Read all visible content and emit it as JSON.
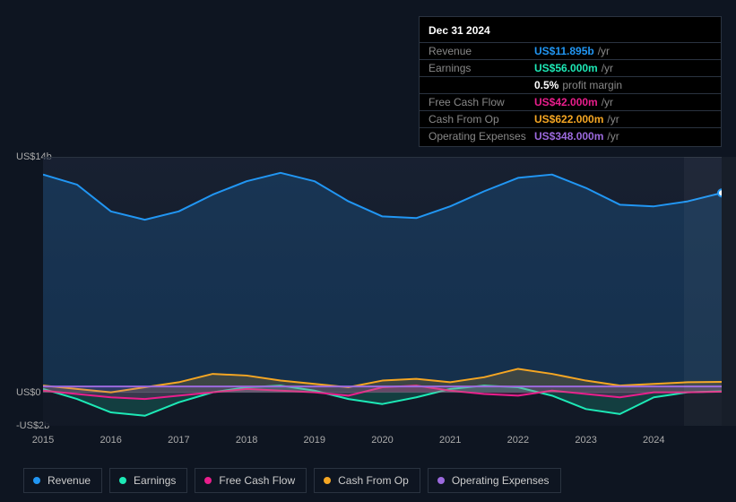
{
  "tooltip": {
    "date": "Dec 31 2024",
    "rows": [
      {
        "label": "Revenue",
        "value": "US$11.895b",
        "unit": "/yr",
        "color": "#2196f3"
      },
      {
        "label": "Earnings",
        "value": "US$56.000m",
        "unit": "/yr",
        "color": "#1de9b6",
        "secondary_value": "0.5%",
        "secondary_label": "profit margin"
      },
      {
        "label": "Free Cash Flow",
        "value": "US$42.000m",
        "unit": "/yr",
        "color": "#e91e8c"
      },
      {
        "label": "Cash From Op",
        "value": "US$622.000m",
        "unit": "/yr",
        "color": "#f5a623"
      },
      {
        "label": "Operating Expenses",
        "value": "US$348.000m",
        "unit": "/yr",
        "color": "#9c6ade"
      }
    ]
  },
  "chart": {
    "type": "area",
    "x_start": 2015,
    "x_end": 2025,
    "y_min": -2,
    "y_max": 14,
    "y_ticks": [
      {
        "v": 14,
        "label": "US$14b"
      },
      {
        "v": 0,
        "label": "US$0"
      },
      {
        "v": -2,
        "label": "-US$2b"
      }
    ],
    "x_ticks": [
      2015,
      2016,
      2017,
      2018,
      2019,
      2020,
      2021,
      2022,
      2023,
      2024
    ],
    "cursor_x": 2024.95,
    "grid_color": "#2a3340",
    "background": "#0e1521",
    "line_width": 2,
    "area_opacity": 0.18,
    "series": [
      {
        "name": "Revenue",
        "color": "#2196f3",
        "points": [
          [
            2015,
            13.0
          ],
          [
            2015.5,
            12.4
          ],
          [
            2016,
            10.8
          ],
          [
            2016.5,
            10.3
          ],
          [
            2017,
            10.8
          ],
          [
            2017.5,
            11.8
          ],
          [
            2018,
            12.6
          ],
          [
            2018.5,
            13.1
          ],
          [
            2019,
            12.6
          ],
          [
            2019.5,
            11.4
          ],
          [
            2020,
            10.5
          ],
          [
            2020.5,
            10.4
          ],
          [
            2021,
            11.1
          ],
          [
            2021.5,
            12.0
          ],
          [
            2022,
            12.8
          ],
          [
            2022.5,
            13.0
          ],
          [
            2023,
            12.2
          ],
          [
            2023.5,
            11.2
          ],
          [
            2024,
            11.1
          ],
          [
            2024.5,
            11.4
          ],
          [
            2025,
            11.9
          ]
        ]
      },
      {
        "name": "Earnings",
        "color": "#1de9b6",
        "points": [
          [
            2015,
            0.2
          ],
          [
            2015.5,
            -0.4
          ],
          [
            2016,
            -1.2
          ],
          [
            2016.5,
            -1.4
          ],
          [
            2017,
            -0.6
          ],
          [
            2017.5,
            0.0
          ],
          [
            2018,
            0.3
          ],
          [
            2018.5,
            0.4
          ],
          [
            2019,
            0.1
          ],
          [
            2019.5,
            -0.4
          ],
          [
            2020,
            -0.7
          ],
          [
            2020.5,
            -0.3
          ],
          [
            2021,
            0.2
          ],
          [
            2021.5,
            0.4
          ],
          [
            2022,
            0.3
          ],
          [
            2022.5,
            -0.2
          ],
          [
            2023,
            -1.0
          ],
          [
            2023.5,
            -1.3
          ],
          [
            2024,
            -0.3
          ],
          [
            2024.5,
            0.0
          ],
          [
            2025,
            0.06
          ]
        ]
      },
      {
        "name": "Free Cash Flow",
        "color": "#e91e8c",
        "points": [
          [
            2015,
            0.1
          ],
          [
            2015.5,
            -0.1
          ],
          [
            2016,
            -0.3
          ],
          [
            2016.5,
            -0.4
          ],
          [
            2017,
            -0.2
          ],
          [
            2017.5,
            0.0
          ],
          [
            2018,
            0.2
          ],
          [
            2018.5,
            0.1
          ],
          [
            2019,
            0.0
          ],
          [
            2019.5,
            -0.2
          ],
          [
            2020,
            0.3
          ],
          [
            2020.5,
            0.4
          ],
          [
            2021,
            0.1
          ],
          [
            2021.5,
            -0.1
          ],
          [
            2022,
            -0.2
          ],
          [
            2022.5,
            0.1
          ],
          [
            2023,
            -0.1
          ],
          [
            2023.5,
            -0.3
          ],
          [
            2024,
            0.0
          ],
          [
            2024.5,
            0.0
          ],
          [
            2025,
            0.04
          ]
        ]
      },
      {
        "name": "Cash From Op",
        "color": "#f5a623",
        "points": [
          [
            2015,
            0.4
          ],
          [
            2015.5,
            0.2
          ],
          [
            2016,
            0.0
          ],
          [
            2016.5,
            0.3
          ],
          [
            2017,
            0.6
          ],
          [
            2017.5,
            1.1
          ],
          [
            2018,
            1.0
          ],
          [
            2018.5,
            0.7
          ],
          [
            2019,
            0.5
          ],
          [
            2019.5,
            0.3
          ],
          [
            2020,
            0.7
          ],
          [
            2020.5,
            0.8
          ],
          [
            2021,
            0.6
          ],
          [
            2021.5,
            0.9
          ],
          [
            2022,
            1.4
          ],
          [
            2022.5,
            1.1
          ],
          [
            2023,
            0.7
          ],
          [
            2023.5,
            0.4
          ],
          [
            2024,
            0.5
          ],
          [
            2024.5,
            0.6
          ],
          [
            2025,
            0.62
          ]
        ]
      },
      {
        "name": "Operating Expenses",
        "color": "#9c6ade",
        "points": [
          [
            2015,
            0.35
          ],
          [
            2016,
            0.35
          ],
          [
            2017,
            0.35
          ],
          [
            2018,
            0.35
          ],
          [
            2019,
            0.35
          ],
          [
            2020,
            0.35
          ],
          [
            2021,
            0.35
          ],
          [
            2022,
            0.35
          ],
          [
            2023,
            0.35
          ],
          [
            2024,
            0.35
          ],
          [
            2025,
            0.35
          ]
        ]
      }
    ],
    "legend": [
      {
        "label": "Revenue",
        "color": "#2196f3"
      },
      {
        "label": "Earnings",
        "color": "#1de9b6"
      },
      {
        "label": "Free Cash Flow",
        "color": "#e91e8c"
      },
      {
        "label": "Cash From Op",
        "color": "#f5a623"
      },
      {
        "label": "Operating Expenses",
        "color": "#9c6ade"
      }
    ]
  }
}
